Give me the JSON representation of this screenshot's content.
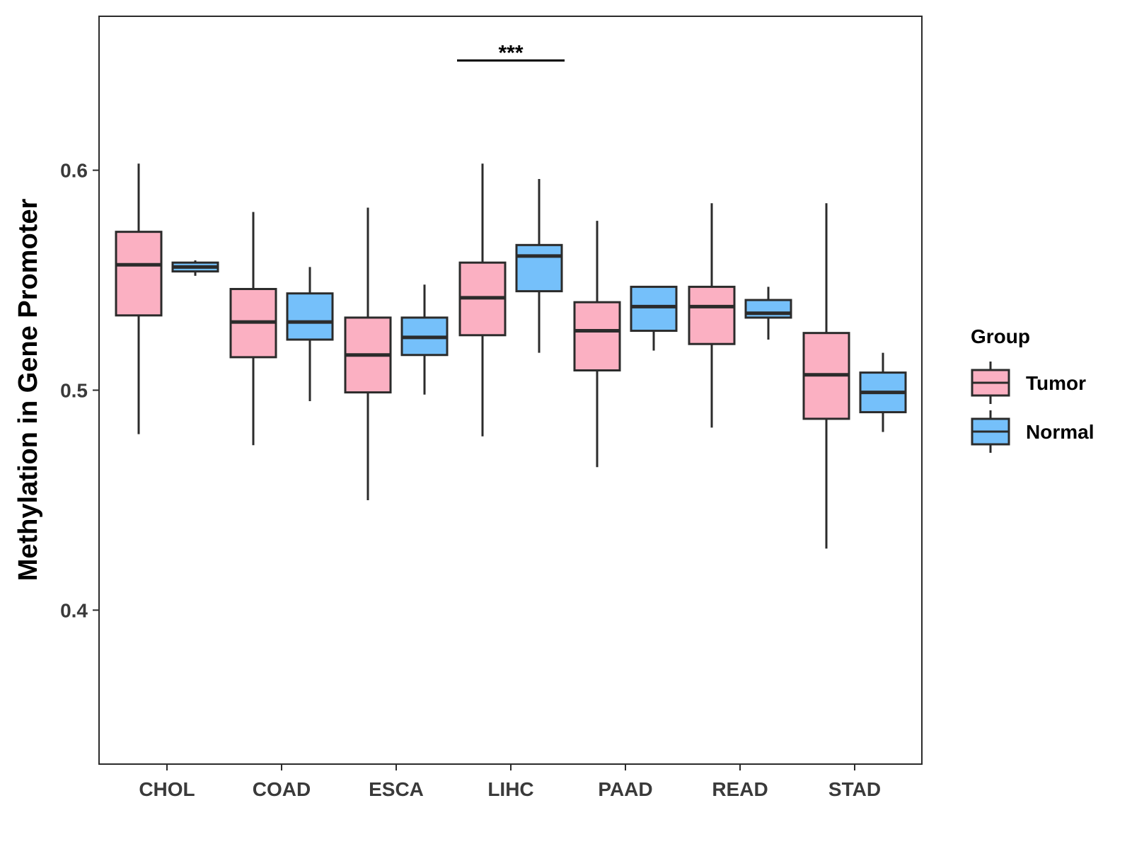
{
  "chart_data": {
    "type": "boxplot",
    "title": "",
    "xlabel": "",
    "ylabel": "Methylation in Gene Promoter",
    "ylim": [
      0.33,
      0.67
    ],
    "yticks": [
      0.4,
      0.5,
      0.6
    ],
    "ytick_labels": [
      "0.4",
      "0.5",
      "0.6"
    ],
    "grid": false,
    "categories": [
      "CHOL",
      "COAD",
      "ESCA",
      "LIHC",
      "PAAD",
      "READ",
      "STAD"
    ],
    "legend": {
      "title": "Group",
      "position": "right",
      "entries": [
        "Tumor",
        "Normal"
      ]
    },
    "colors": {
      "Tumor": "#FBB0C2",
      "Normal": "#75C0FA",
      "stroke": "#2b2b2b"
    },
    "series": [
      {
        "name": "Tumor",
        "boxes": [
          {
            "min": 0.48,
            "q1": 0.534,
            "median": 0.557,
            "q3": 0.572,
            "max": 0.603
          },
          {
            "min": 0.475,
            "q1": 0.515,
            "median": 0.531,
            "q3": 0.546,
            "max": 0.581
          },
          {
            "min": 0.45,
            "q1": 0.499,
            "median": 0.516,
            "q3": 0.533,
            "max": 0.583
          },
          {
            "min": 0.479,
            "q1": 0.525,
            "median": 0.542,
            "q3": 0.558,
            "max": 0.603
          },
          {
            "min": 0.465,
            "q1": 0.509,
            "median": 0.527,
            "q3": 0.54,
            "max": 0.577
          },
          {
            "min": 0.483,
            "q1": 0.521,
            "median": 0.538,
            "q3": 0.547,
            "max": 0.585
          },
          {
            "min": 0.428,
            "q1": 0.487,
            "median": 0.507,
            "q3": 0.526,
            "max": 0.585
          }
        ]
      },
      {
        "name": "Normal",
        "boxes": [
          {
            "min": 0.552,
            "q1": 0.554,
            "median": 0.556,
            "q3": 0.558,
            "max": 0.559
          },
          {
            "min": 0.495,
            "q1": 0.523,
            "median": 0.531,
            "q3": 0.544,
            "max": 0.556
          },
          {
            "min": 0.498,
            "q1": 0.516,
            "median": 0.524,
            "q3": 0.533,
            "max": 0.548
          },
          {
            "min": 0.517,
            "q1": 0.545,
            "median": 0.561,
            "q3": 0.566,
            "max": 0.596
          },
          {
            "min": 0.518,
            "q1": 0.527,
            "median": 0.538,
            "q3": 0.547,
            "max": 0.547
          },
          {
            "min": 0.523,
            "q1": 0.533,
            "median": 0.535,
            "q3": 0.541,
            "max": 0.547
          },
          {
            "min": 0.481,
            "q1": 0.49,
            "median": 0.499,
            "q3": 0.508,
            "max": 0.517
          }
        ]
      }
    ],
    "annotations": [
      {
        "text": "***",
        "category": "LIHC",
        "y": 0.656
      }
    ]
  }
}
